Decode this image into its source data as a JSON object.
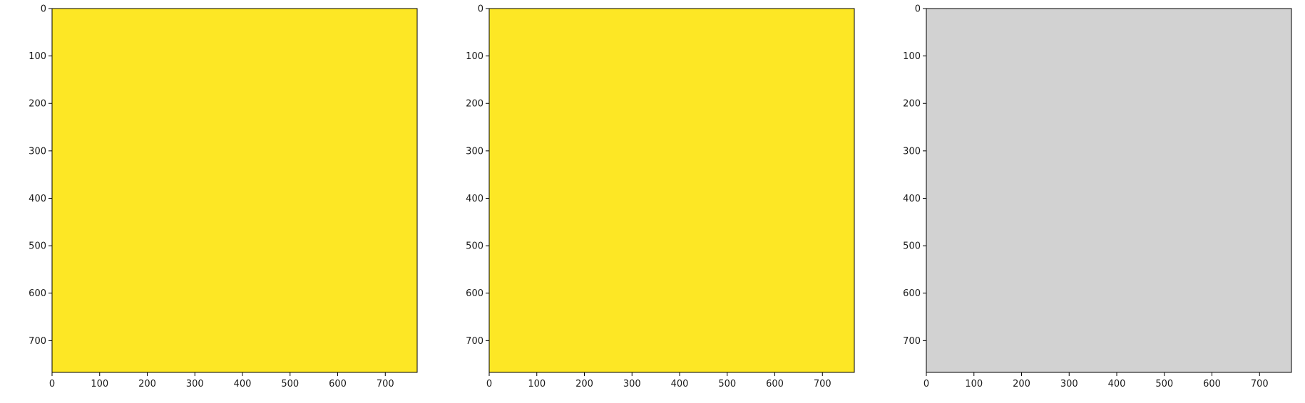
{
  "figure": {
    "panels": [
      {
        "id": "panel-1",
        "kind": "viridis-mask-coarse"
      },
      {
        "id": "panel-2",
        "kind": "viridis-mask-dense"
      },
      {
        "id": "panel-3",
        "kind": "grayscale-microscopy"
      }
    ],
    "axes": {
      "x_ticks": [
        "0",
        "100",
        "200",
        "300",
        "400",
        "500",
        "600",
        "700"
      ],
      "x_tick_values": [
        0,
        100,
        200,
        300,
        400,
        500,
        600,
        700
      ],
      "y_ticks": [
        "0",
        "100",
        "200",
        "300",
        "400",
        "500",
        "600",
        "700"
      ],
      "y_tick_values": [
        0,
        100,
        200,
        300,
        400,
        500,
        600,
        700
      ],
      "x_range": [
        0,
        767
      ],
      "y_range": [
        0,
        767
      ],
      "y_inverted": true
    },
    "scratch_band": {
      "top": 260,
      "bottom": 455
    },
    "colors": {
      "viridis_yellow": "#fde725",
      "viridis_dark": "#440154",
      "viridis_navy": "#3b528b",
      "viridis_teal": "#21918c",
      "gray_light": "#d2d2d2",
      "gray_mid": "#a8a8a8",
      "gray_dark": "#5a5a5a"
    }
  }
}
